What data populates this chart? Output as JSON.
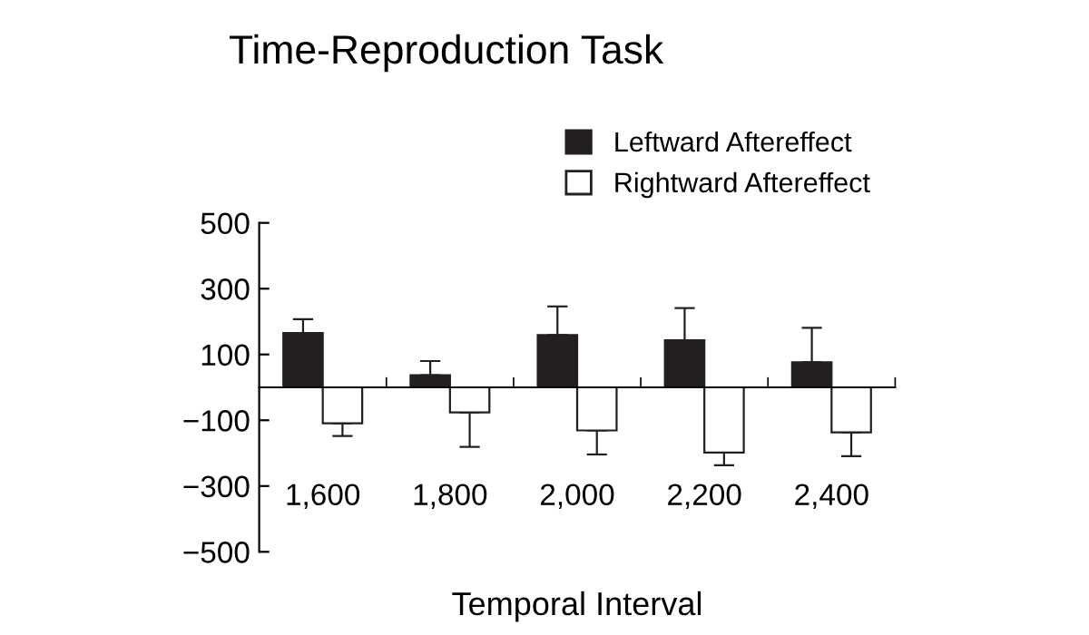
{
  "chart_data": {
    "type": "bar",
    "title": "Time-Reproduction Task",
    "xlabel": "Temporal Interval",
    "categories": [
      "1,600",
      "1,800",
      "2,000",
      "2,200",
      "2,400"
    ],
    "series": [
      {
        "name": "Leftward Aftereffect",
        "color": "#231f20",
        "values": [
          165,
          37,
          159,
          143,
          76
        ],
        "errors": [
          [
            165,
            207
          ],
          [
            37,
            80
          ],
          [
            159,
            246
          ],
          [
            143,
            241
          ],
          [
            76,
            181
          ]
        ]
      },
      {
        "name": "Rightward Aftereffect",
        "color": "#ffffff",
        "values": [
          -109,
          -76,
          -131,
          -198,
          -137
        ],
        "errors": [
          [
            -148,
            -109
          ],
          [
            -181,
            -76
          ],
          [
            -204,
            -131
          ],
          [
            -237,
            -198
          ],
          [
            -209,
            -137
          ]
        ]
      }
    ],
    "ylim": [
      -500,
      500
    ],
    "yticks": [
      {
        "value": -500,
        "label": "−500"
      },
      {
        "value": -300,
        "label": "−300"
      },
      {
        "value": -100,
        "label": "−100"
      },
      100,
      300,
      500
    ],
    "grid": false,
    "legend": "top right"
  }
}
